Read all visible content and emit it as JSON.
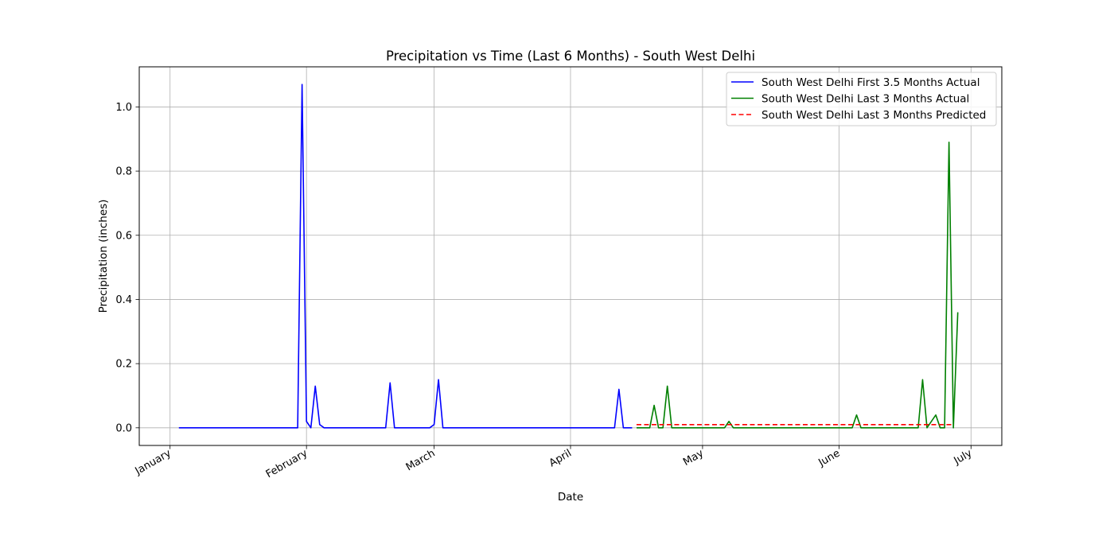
{
  "chart_data": {
    "type": "line",
    "title": "Precipitation vs Time (Last 6 Months) - South West Delhi",
    "xlabel": "Date",
    "ylabel": "Precipitation (inches)",
    "x_ticks": [
      {
        "date": "2024-01-01",
        "label": "January"
      },
      {
        "date": "2024-02-01",
        "label": "February"
      },
      {
        "date": "2024-03-01",
        "label": "March"
      },
      {
        "date": "2024-04-01",
        "label": "April"
      },
      {
        "date": "2024-05-01",
        "label": "May"
      },
      {
        "date": "2024-06-01",
        "label": "June"
      },
      {
        "date": "2024-07-01",
        "label": "July"
      }
    ],
    "y_ticks": [
      {
        "value": 0.0,
        "label": "0.0"
      },
      {
        "value": 0.2,
        "label": "0.2"
      },
      {
        "value": 0.4,
        "label": "0.4"
      },
      {
        "value": 0.6,
        "label": "0.6"
      },
      {
        "value": 0.8,
        "label": "0.8"
      },
      {
        "value": 1.0,
        "label": "1.0"
      }
    ],
    "xlim": [
      "2023-12-25",
      "2024-07-08"
    ],
    "ylim": [
      -0.055,
      1.125
    ],
    "grid": true,
    "legend_position": "top-right",
    "series": [
      {
        "name": "South West Delhi First 3.5 Months Actual",
        "color": "#0000ff",
        "style": "solid",
        "points": [
          [
            "2024-01-03",
            0.0
          ],
          [
            "2024-01-30",
            0.0
          ],
          [
            "2024-01-31",
            1.07
          ],
          [
            "2024-02-01",
            0.02
          ],
          [
            "2024-02-02",
            0.0
          ],
          [
            "2024-02-03",
            0.13
          ],
          [
            "2024-02-04",
            0.01
          ],
          [
            "2024-02-05",
            0.0
          ],
          [
            "2024-02-19",
            0.0
          ],
          [
            "2024-02-20",
            0.14
          ],
          [
            "2024-02-21",
            0.0
          ],
          [
            "2024-02-29",
            0.0
          ],
          [
            "2024-03-01",
            0.01
          ],
          [
            "2024-03-02",
            0.15
          ],
          [
            "2024-03-03",
            0.0
          ],
          [
            "2024-04-11",
            0.0
          ],
          [
            "2024-04-12",
            0.12
          ],
          [
            "2024-04-13",
            0.0
          ],
          [
            "2024-04-15",
            0.0
          ]
        ]
      },
      {
        "name": "South West Delhi Last 3 Months Actual",
        "color": "#008000",
        "style": "solid",
        "points": [
          [
            "2024-04-16",
            0.0
          ],
          [
            "2024-04-19",
            0.0
          ],
          [
            "2024-04-20",
            0.07
          ],
          [
            "2024-04-21",
            0.0
          ],
          [
            "2024-04-22",
            0.0
          ],
          [
            "2024-04-23",
            0.13
          ],
          [
            "2024-04-24",
            0.0
          ],
          [
            "2024-05-06",
            0.0
          ],
          [
            "2024-05-07",
            0.02
          ],
          [
            "2024-05-08",
            0.0
          ],
          [
            "2024-06-04",
            0.0
          ],
          [
            "2024-06-05",
            0.04
          ],
          [
            "2024-06-06",
            0.0
          ],
          [
            "2024-06-19",
            0.0
          ],
          [
            "2024-06-20",
            0.15
          ],
          [
            "2024-06-21",
            0.0
          ],
          [
            "2024-06-23",
            0.04
          ],
          [
            "2024-06-24",
            0.0
          ],
          [
            "2024-06-25",
            0.0
          ],
          [
            "2024-06-26",
            0.89
          ],
          [
            "2024-06-27",
            0.0
          ],
          [
            "2024-06-28",
            0.36
          ]
        ]
      },
      {
        "name": "South West Delhi Last 3 Months Predicted",
        "color": "#ff0000",
        "style": "dashed",
        "points": [
          [
            "2024-04-16",
            0.01
          ],
          [
            "2024-05-01",
            0.01
          ],
          [
            "2024-06-01",
            0.01
          ],
          [
            "2024-06-27",
            0.01
          ]
        ]
      }
    ]
  }
}
